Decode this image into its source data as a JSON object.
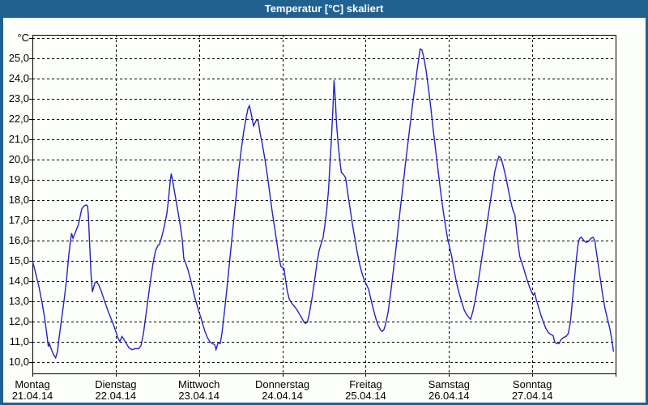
{
  "window": {
    "title": "Temperatur [°C] skaliert"
  },
  "colors": {
    "titlebar": "#20618f",
    "window_border": "#20618f",
    "background": "#fdfffb",
    "plot_border": "#000000",
    "gridline": "#000000",
    "line": "#2222c4",
    "title_text": "#ffffff",
    "axis_text": "#000000"
  },
  "chart_data": {
    "type": "line",
    "title": "Temperatur [°C] skaliert",
    "legend_position": "none",
    "grid": "dashed",
    "y_axis": {
      "unit_label": "°C",
      "min": 10,
      "max": 26,
      "tick_step": 1,
      "tick_labels": [
        "25,0",
        "24,0",
        "23,0",
        "22,0",
        "21,0",
        "20,0",
        "19,0",
        "18,0",
        "17,0",
        "16,0",
        "15,0",
        "14,0",
        "13,0",
        "12,0",
        "11,0",
        "10,0"
      ],
      "tick_values": [
        25,
        24,
        23,
        22,
        21,
        20,
        19,
        18,
        17,
        16,
        15,
        14,
        13,
        12,
        11,
        10
      ]
    },
    "x_axis": {
      "span_hours": 168,
      "day_width_hours": 24,
      "days": [
        {
          "name": "Montag",
          "date": "21.04.14"
        },
        {
          "name": "Dienstag",
          "date": "22.04.14"
        },
        {
          "name": "Mittwoch",
          "date": "23.04.14"
        },
        {
          "name": "Donnerstag",
          "date": "24.04.14"
        },
        {
          "name": "Freitag",
          "date": "25.04.14"
        },
        {
          "name": "Samstag",
          "date": "26.04.14"
        },
        {
          "name": "Sonntag",
          "date": "27.04.14"
        }
      ]
    },
    "series": [
      {
        "name": "Temperatur",
        "color": "#2222c4",
        "points_hours_temp": [
          [
            0,
            15.0
          ],
          [
            0.9,
            14.4
          ],
          [
            1.9,
            13.7
          ],
          [
            2.8,
            12.9
          ],
          [
            3.5,
            12.2
          ],
          [
            4.2,
            11.3
          ],
          [
            4.6,
            10.75
          ],
          [
            4.9,
            10.9
          ],
          [
            5.4,
            10.65
          ],
          [
            6.1,
            10.35
          ],
          [
            6.7,
            10.2
          ],
          [
            7.2,
            10.5
          ],
          [
            7.7,
            11.2
          ],
          [
            8.4,
            12.1
          ],
          [
            9.1,
            13.0
          ],
          [
            9.8,
            14.0
          ],
          [
            10.5,
            15.3
          ],
          [
            11.0,
            16.0
          ],
          [
            11.3,
            16.35
          ],
          [
            11.7,
            16.1
          ],
          [
            12.4,
            16.4
          ],
          [
            13.3,
            16.8
          ],
          [
            14.2,
            17.55
          ],
          [
            14.9,
            17.7
          ],
          [
            15.5,
            17.75
          ],
          [
            15.9,
            17.7
          ],
          [
            16.1,
            17.3
          ],
          [
            16.5,
            15.8
          ],
          [
            16.9,
            14.3
          ],
          [
            17.3,
            13.45
          ],
          [
            18.0,
            13.9
          ],
          [
            18.5,
            13.95
          ],
          [
            19.1,
            13.8
          ],
          [
            19.8,
            13.5
          ],
          [
            20.8,
            13.0
          ],
          [
            21.7,
            12.55
          ],
          [
            22.6,
            12.15
          ],
          [
            23.3,
            11.85
          ],
          [
            24.0,
            11.5
          ],
          [
            24.7,
            11.15
          ],
          [
            25.2,
            11.0
          ],
          [
            25.8,
            11.25
          ],
          [
            26.4,
            11.1
          ],
          [
            27.1,
            10.9
          ],
          [
            27.8,
            10.7
          ],
          [
            28.7,
            10.6
          ],
          [
            29.6,
            10.65
          ],
          [
            30.6,
            10.65
          ],
          [
            31.3,
            10.8
          ],
          [
            32.0,
            11.4
          ],
          [
            32.7,
            12.3
          ],
          [
            33.4,
            13.2
          ],
          [
            34.1,
            14.1
          ],
          [
            34.8,
            14.9
          ],
          [
            35.5,
            15.5
          ],
          [
            36.2,
            15.75
          ],
          [
            36.6,
            15.8
          ],
          [
            37.3,
            16.2
          ],
          [
            38.0,
            16.7
          ],
          [
            38.7,
            17.3
          ],
          [
            39.2,
            18.0
          ],
          [
            39.7,
            18.9
          ],
          [
            40.0,
            19.3
          ],
          [
            40.4,
            18.95
          ],
          [
            41.1,
            18.25
          ],
          [
            41.8,
            17.55
          ],
          [
            42.5,
            16.85
          ],
          [
            43.2,
            16.0
          ],
          [
            43.6,
            15.1
          ],
          [
            44.1,
            14.9
          ],
          [
            44.8,
            14.55
          ],
          [
            45.5,
            14.1
          ],
          [
            46.2,
            13.6
          ],
          [
            46.9,
            13.1
          ],
          [
            47.6,
            12.7
          ],
          [
            48.0,
            12.45
          ],
          [
            48.5,
            12.2
          ],
          [
            49.0,
            11.9
          ],
          [
            49.7,
            11.5
          ],
          [
            50.4,
            11.2
          ],
          [
            51.1,
            11.0
          ],
          [
            51.8,
            10.9
          ],
          [
            52.5,
            10.85
          ],
          [
            52.9,
            10.6
          ],
          [
            53.5,
            10.95
          ],
          [
            54.1,
            10.9
          ],
          [
            54.6,
            11.4
          ],
          [
            55.2,
            12.3
          ],
          [
            55.9,
            13.4
          ],
          [
            56.6,
            14.6
          ],
          [
            57.3,
            15.8
          ],
          [
            58.0,
            17.0
          ],
          [
            58.7,
            18.2
          ],
          [
            59.4,
            19.4
          ],
          [
            60.1,
            20.4
          ],
          [
            60.8,
            21.3
          ],
          [
            61.5,
            22.0
          ],
          [
            62.1,
            22.5
          ],
          [
            62.5,
            22.65
          ],
          [
            63.1,
            22.2
          ],
          [
            63.7,
            21.65
          ],
          [
            64.4,
            21.9
          ],
          [
            65.0,
            21.95
          ],
          [
            65.6,
            21.3
          ],
          [
            66.3,
            20.7
          ],
          [
            67.0,
            20.0
          ],
          [
            67.7,
            19.2
          ],
          [
            68.4,
            18.3
          ],
          [
            69.1,
            17.4
          ],
          [
            69.8,
            16.6
          ],
          [
            70.5,
            15.8
          ],
          [
            71.2,
            15.0
          ],
          [
            71.6,
            14.7
          ],
          [
            72.0,
            14.65
          ],
          [
            72.5,
            14.6
          ],
          [
            72.9,
            14.1
          ],
          [
            73.4,
            13.5
          ],
          [
            74.0,
            13.1
          ],
          [
            74.7,
            12.9
          ],
          [
            75.4,
            12.75
          ],
          [
            76.1,
            12.6
          ],
          [
            76.8,
            12.4
          ],
          [
            77.5,
            12.2
          ],
          [
            78.1,
            12.0
          ],
          [
            78.6,
            11.9
          ],
          [
            79.2,
            11.95
          ],
          [
            79.8,
            12.4
          ],
          [
            80.5,
            13.1
          ],
          [
            81.2,
            13.9
          ],
          [
            81.9,
            14.8
          ],
          [
            82.6,
            15.5
          ],
          [
            83.2,
            15.85
          ],
          [
            83.7,
            16.1
          ],
          [
            84.2,
            16.7
          ],
          [
            84.8,
            17.5
          ],
          [
            85.3,
            18.5
          ],
          [
            85.7,
            19.7
          ],
          [
            86.2,
            21.2
          ],
          [
            86.6,
            22.6
          ],
          [
            86.9,
            23.9
          ],
          [
            87.3,
            22.9
          ],
          [
            87.6,
            21.8
          ],
          [
            88.1,
            20.7
          ],
          [
            88.6,
            19.9
          ],
          [
            89.0,
            19.35
          ],
          [
            89.6,
            19.25
          ],
          [
            90.2,
            19.1
          ],
          [
            90.8,
            18.4
          ],
          [
            91.5,
            17.6
          ],
          [
            92.2,
            16.8
          ],
          [
            92.9,
            16.1
          ],
          [
            93.6,
            15.4
          ],
          [
            94.3,
            14.8
          ],
          [
            95.0,
            14.35
          ],
          [
            95.7,
            14.0
          ],
          [
            96.0,
            13.9
          ],
          [
            96.8,
            13.6
          ],
          [
            97.5,
            13.1
          ],
          [
            98.2,
            12.6
          ],
          [
            98.9,
            12.15
          ],
          [
            99.6,
            11.8
          ],
          [
            100.2,
            11.6
          ],
          [
            100.7,
            11.5
          ],
          [
            101.3,
            11.6
          ],
          [
            101.8,
            11.9
          ],
          [
            102.5,
            12.5
          ],
          [
            103.2,
            13.4
          ],
          [
            103.9,
            14.4
          ],
          [
            104.6,
            15.4
          ],
          [
            105.3,
            16.5
          ],
          [
            106.0,
            17.6
          ],
          [
            106.7,
            18.6
          ],
          [
            107.4,
            19.7
          ],
          [
            108.1,
            20.7
          ],
          [
            108.8,
            21.7
          ],
          [
            109.5,
            22.7
          ],
          [
            110.2,
            23.6
          ],
          [
            110.8,
            24.4
          ],
          [
            111.3,
            25.0
          ],
          [
            111.7,
            25.45
          ],
          [
            112.2,
            25.4
          ],
          [
            112.8,
            25.0
          ],
          [
            113.4,
            24.4
          ],
          [
            114.1,
            23.5
          ],
          [
            114.8,
            22.5
          ],
          [
            115.5,
            21.4
          ],
          [
            116.2,
            20.4
          ],
          [
            116.9,
            19.4
          ],
          [
            117.6,
            18.4
          ],
          [
            118.3,
            17.5
          ],
          [
            119.0,
            16.7
          ],
          [
            119.7,
            16.0
          ],
          [
            120.0,
            15.8
          ],
          [
            120.8,
            15.2
          ],
          [
            121.5,
            14.5
          ],
          [
            122.2,
            13.9
          ],
          [
            122.9,
            13.4
          ],
          [
            123.6,
            13.0
          ],
          [
            124.3,
            12.6
          ],
          [
            125.0,
            12.35
          ],
          [
            125.7,
            12.2
          ],
          [
            126.2,
            12.1
          ],
          [
            126.9,
            12.5
          ],
          [
            127.6,
            13.1
          ],
          [
            128.3,
            13.8
          ],
          [
            129.0,
            14.6
          ],
          [
            129.7,
            15.4
          ],
          [
            130.4,
            16.2
          ],
          [
            131.1,
            17.0
          ],
          [
            131.8,
            17.8
          ],
          [
            132.5,
            18.6
          ],
          [
            133.2,
            19.4
          ],
          [
            133.9,
            19.9
          ],
          [
            134.4,
            20.15
          ],
          [
            135.0,
            20.05
          ],
          [
            135.6,
            19.7
          ],
          [
            136.3,
            19.2
          ],
          [
            137.0,
            18.6
          ],
          [
            137.7,
            18.0
          ],
          [
            138.4,
            17.5
          ],
          [
            139.0,
            17.25
          ],
          [
            139.4,
            16.6
          ],
          [
            139.9,
            15.8
          ],
          [
            140.4,
            15.2
          ],
          [
            141.1,
            14.85
          ],
          [
            141.8,
            14.45
          ],
          [
            142.5,
            14.05
          ],
          [
            143.2,
            13.7
          ],
          [
            143.9,
            13.4
          ],
          [
            144.3,
            13.3
          ],
          [
            144.7,
            13.4
          ],
          [
            145.1,
            13.1
          ],
          [
            145.8,
            12.7
          ],
          [
            146.5,
            12.3
          ],
          [
            147.2,
            11.95
          ],
          [
            147.9,
            11.65
          ],
          [
            148.6,
            11.45
          ],
          [
            149.3,
            11.35
          ],
          [
            150.0,
            11.3
          ],
          [
            150.4,
            11.0
          ],
          [
            151.0,
            10.9
          ],
          [
            151.7,
            10.9
          ],
          [
            152.3,
            11.1
          ],
          [
            153.0,
            11.2
          ],
          [
            153.7,
            11.25
          ],
          [
            154.4,
            11.4
          ],
          [
            155.0,
            12.0
          ],
          [
            155.5,
            12.9
          ],
          [
            156.1,
            14.0
          ],
          [
            156.7,
            15.1
          ],
          [
            157.2,
            15.8
          ],
          [
            157.6,
            16.1
          ],
          [
            158.2,
            16.15
          ],
          [
            158.8,
            16.0
          ],
          [
            159.5,
            15.9
          ],
          [
            160.2,
            15.95
          ],
          [
            160.9,
            16.1
          ],
          [
            161.5,
            16.15
          ],
          [
            162.0,
            16.0
          ],
          [
            162.4,
            15.5
          ],
          [
            163.0,
            14.8
          ],
          [
            163.6,
            14.1
          ],
          [
            164.3,
            13.3
          ],
          [
            165.0,
            12.6
          ],
          [
            165.7,
            12.1
          ],
          [
            166.4,
            11.6
          ],
          [
            167.0,
            11.0
          ],
          [
            167.4,
            10.5
          ]
        ]
      }
    ]
  }
}
